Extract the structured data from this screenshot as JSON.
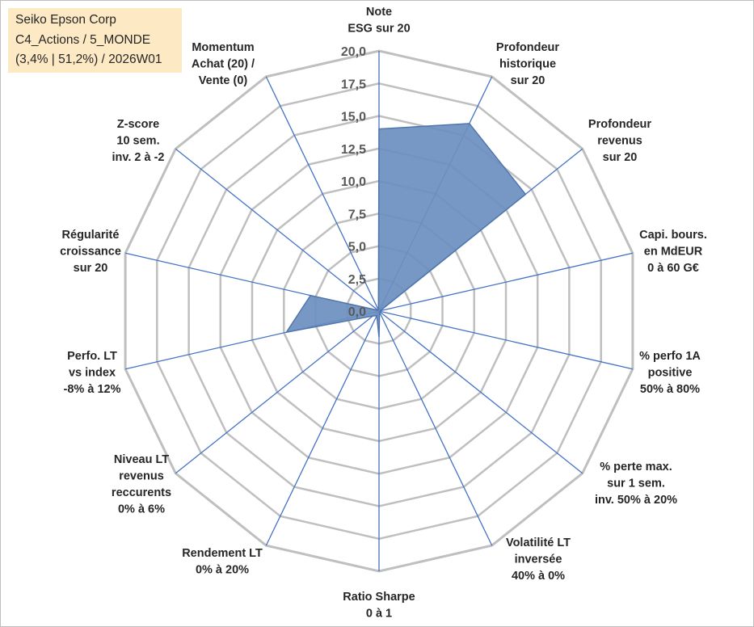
{
  "info": {
    "company": "Seiko Epson Corp",
    "category": "C4_Actions / 5_MONDE",
    "stats": "(3,4% | 51,2%) / 2026W01"
  },
  "colors": {
    "area_fill": "#6b8fc0",
    "area_stroke": "#4f76ad",
    "spoke": "#4472c4",
    "grid": "#bfbfbf",
    "info_bg": "#fde9c4"
  },
  "chart_data": {
    "type": "radar",
    "title": "",
    "r_range": [
      0,
      20
    ],
    "r_ticks": [
      "0,0",
      "2,5",
      "5,0",
      "7,5",
      "10,0",
      "12,5",
      "15,0",
      "17,5",
      "20,0"
    ],
    "grid": true,
    "axes": [
      [
        "Note",
        "ESG sur 20"
      ],
      [
        "Profondeur",
        "historique",
        "sur 20"
      ],
      [
        "Profondeur",
        "revenus",
        "sur 20"
      ],
      [
        "Capi. bours.",
        "en MdEUR",
        "0 à 60 G€"
      ],
      [
        "% perfo 1A",
        "positive",
        "50% à 80%"
      ],
      [
        "% perte max.",
        "sur 1 sem.",
        "inv. 50% à 20%"
      ],
      [
        "Volatilité LT",
        "inversée",
        "40% à 0%"
      ],
      [
        "Ratio Sharpe",
        "0 à 1"
      ],
      [
        "Rendement LT",
        "0% à 20%"
      ],
      [
        "Niveau LT",
        "revenus",
        "reccurents",
        "0% à 6%"
      ],
      [
        "Perfo. LT",
        "vs index",
        "-8% à 12%"
      ],
      [
        "Régularité",
        "croissance",
        "sur 20"
      ],
      [
        "Z-score",
        "10 sem.",
        "inv. 2 à -2"
      ],
      [
        "Momentum",
        "Achat (20) /",
        "Vente (0)"
      ]
    ],
    "series": [
      {
        "name": "Seiko Epson Corp",
        "values": [
          14.0,
          16.0,
          14.4,
          0.1,
          0.1,
          0.1,
          0.1,
          2.0,
          0.4,
          0.6,
          7.3,
          5.4,
          0.1,
          0.1
        ]
      }
    ]
  }
}
